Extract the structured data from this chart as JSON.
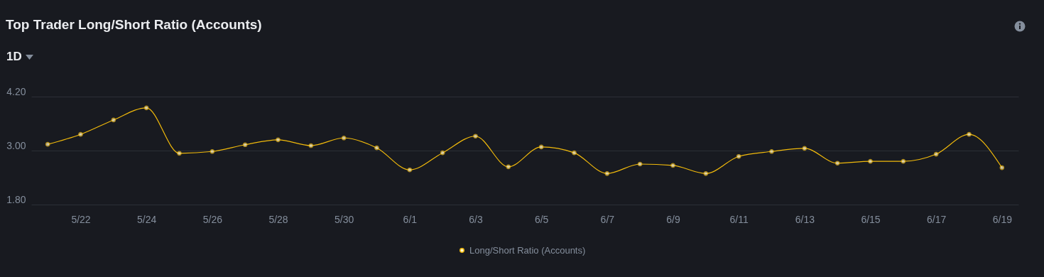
{
  "chart_data": {
    "type": "line",
    "title": "Top Trader Long/Short Ratio (Accounts)",
    "annotations": [
      "1D"
    ],
    "categories": [
      null,
      "5/22",
      null,
      "5/24",
      null,
      "5/26",
      null,
      "5/28",
      null,
      "5/30",
      null,
      "6/1",
      null,
      "6/3",
      null,
      "6/5",
      null,
      "6/7",
      null,
      "6/9",
      null,
      "6/11",
      null,
      "6/13",
      null,
      "6/15",
      null,
      "6/17",
      null,
      "6/19"
    ],
    "series": [
      {
        "name": "Long/Short Ratio (Accounts)",
        "color": "#f0b90b",
        "values": [
          3.14,
          3.36,
          3.68,
          3.95,
          2.94,
          2.98,
          3.13,
          3.24,
          3.11,
          3.28,
          3.06,
          2.57,
          2.95,
          3.32,
          2.64,
          3.08,
          2.95,
          2.49,
          2.7,
          2.67,
          2.49,
          2.87,
          2.98,
          3.05,
          2.72,
          2.76,
          2.76,
          2.92,
          3.36,
          2.62
        ]
      }
    ],
    "ylim": [
      1.8,
      4.2
    ],
    "yticks": [
      {
        "value": 1.8,
        "label": "1.80"
      },
      {
        "value": 3.0,
        "label": "3.00"
      },
      {
        "value": 4.2,
        "label": "4.20"
      }
    ],
    "grid": "y",
    "legend": "bottom",
    "marker": "circle",
    "line_style": "solid"
  }
}
